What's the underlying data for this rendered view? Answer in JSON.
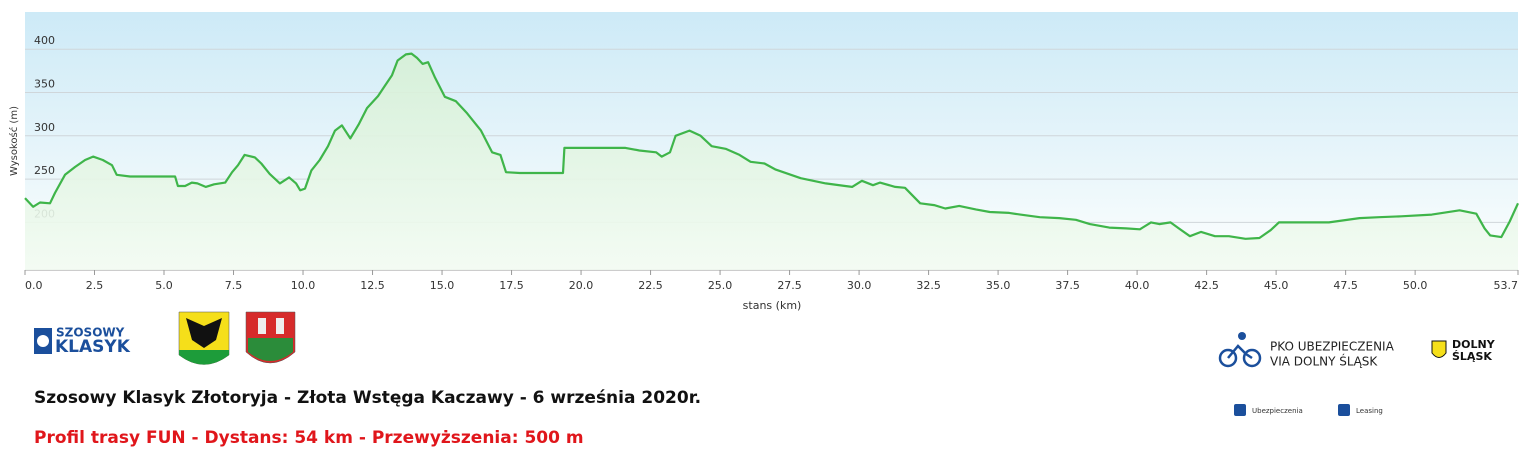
{
  "chart_data": {
    "type": "area",
    "y_label": "Wysokość (m)",
    "x_label": "stans (km)",
    "color": "#3fb54a",
    "fill": "#bfe8c4",
    "grid": true,
    "xlim": [
      0,
      53.7
    ],
    "ylim": [
      145,
      443
    ],
    "xticks": [
      {
        "value": 0,
        "label": "0.0"
      },
      2.5,
      {
        "value": 5,
        "label": "5.0"
      },
      7.5,
      {
        "value": 10,
        "label": "10.0"
      },
      12.5,
      {
        "value": 15,
        "label": "15.0"
      },
      17.5,
      {
        "value": 20,
        "label": "20.0"
      },
      22.5,
      {
        "value": 25,
        "label": "25.0"
      },
      27.5,
      {
        "value": 30,
        "label": "30.0"
      },
      32.5,
      {
        "value": 35,
        "label": "35.0"
      },
      37.5,
      {
        "value": 40,
        "label": "40.0"
      },
      42.5,
      {
        "value": 45,
        "label": "45.0"
      },
      47.5,
      {
        "value": 50,
        "label": "50.0"
      },
      53.7
    ],
    "yticks": [
      200,
      250,
      300,
      350,
      400
    ],
    "x": [
      0,
      0.29,
      0.54,
      0.9,
      1.08,
      1.44,
      1.8,
      2.16,
      2.45,
      2.8,
      3.13,
      3.3,
      3.78,
      5.4,
      5.5,
      5.76,
      6.0,
      6.2,
      6.5,
      6.8,
      7.2,
      7.45,
      7.66,
      7.9,
      8.27,
      8.5,
      8.8,
      9.17,
      9.5,
      9.75,
      9.9,
      10.07,
      10.3,
      10.6,
      10.9,
      11.15,
      11.4,
      11.7,
      12.0,
      12.3,
      12.7,
      12.95,
      13.2,
      13.4,
      13.7,
      13.9,
      14.1,
      14.3,
      14.5,
      14.75,
      15.1,
      15.5,
      15.9,
      16.4,
      16.8,
      17.1,
      17.3,
      17.8,
      19.35,
      19.4,
      21.6,
      22.1,
      22.7,
      22.9,
      23.2,
      23.4,
      23.9,
      24.3,
      24.7,
      25.2,
      25.7,
      26.1,
      26.6,
      27.0,
      27.9,
      28.8,
      29.5,
      29.75,
      30.1,
      30.5,
      30.75,
      31.3,
      31.65,
      32.2,
      32.7,
      33.1,
      33.6,
      34.2,
      34.7,
      35.4,
      35.8,
      36.5,
      37.2,
      37.8,
      38.3,
      39.0,
      39.6,
      40.1,
      40.5,
      40.8,
      41.2,
      41.5,
      41.9,
      42.3,
      42.8,
      43.3,
      43.9,
      44.4,
      44.8,
      45.1,
      45.9,
      46.9,
      48.0,
      48.7,
      49.5,
      50.6,
      51.6,
      52.2,
      52.5,
      52.7,
      53.1,
      53.4,
      53.7
    ],
    "values": [
      228,
      218,
      223,
      222,
      234,
      255,
      264,
      272,
      276,
      272,
      266,
      255,
      253,
      253,
      242,
      242,
      246,
      245,
      241,
      244,
      246,
      258,
      266,
      278,
      275,
      268,
      256,
      245,
      252,
      245,
      237,
      239,
      260,
      272,
      288,
      306,
      312,
      297,
      313,
      332,
      346,
      358,
      370,
      387,
      394,
      395,
      390,
      383,
      385,
      367,
      345,
      340,
      326,
      306,
      281,
      278,
      258,
      257,
      257,
      286,
      286,
      283,
      281,
      276,
      281,
      300,
      306,
      300,
      288,
      285,
      278,
      270,
      268,
      261,
      251,
      245,
      242,
      241,
      248,
      243,
      246,
      241,
      240,
      222,
      220,
      216,
      219,
      215,
      212,
      211,
      209,
      206,
      205,
      203,
      198,
      194,
      193,
      192,
      200,
      198,
      200,
      193,
      184,
      189,
      184,
      184,
      181,
      182,
      191,
      200,
      200,
      200,
      205,
      206,
      207,
      209,
      214,
      210,
      193,
      185,
      183,
      201,
      222
    ]
  },
  "logos": {
    "klasyk_top": "SZOSOWY",
    "klasyk_bottom": "KLASYK",
    "pko_1": "PKO UBEZPIECZENIA",
    "pko_2": "VIA DOLNY ŚLĄSK",
    "dolny_1": "DOLNY",
    "dolny_2": "ŚLĄSK",
    "ubezpieczenia": "Ubezpieczenia",
    "leasing": "Leasing"
  },
  "footer": {
    "title": "Szosowy Klasyk Złotoryja - Złota Wstęga Kaczawy - 6 września 2020r.",
    "subtitle": "Profil trasy FUN - Dystans: 54 km  -  Przewyższenia: 500 m"
  }
}
